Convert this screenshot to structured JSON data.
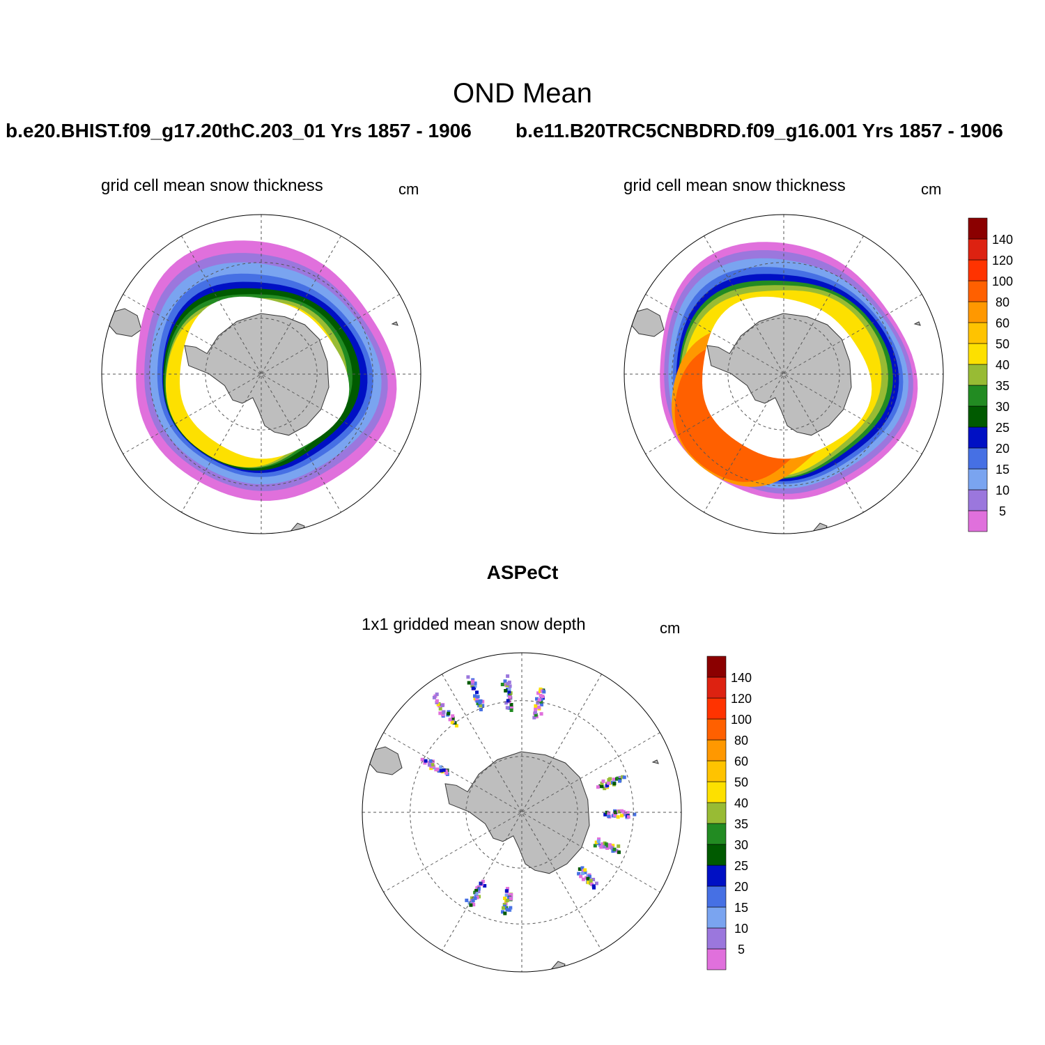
{
  "figure": {
    "title": "OND Mean",
    "left_case": "b.e20.BHIST.f09_g17.20thC.203_01  Yrs 1857 - 1906",
    "right_case": "b.e11.B20TRC5CNBDRD.f09_g16.001  Yrs 1857 - 1906",
    "obs_title": "ASPeCt"
  },
  "panels": [
    {
      "name": "model-left",
      "subtitle": "grid cell mean snow thickness",
      "unit": "cm"
    },
    {
      "name": "model-right",
      "subtitle": "grid cell mean snow thickness",
      "unit": "cm"
    },
    {
      "name": "obs",
      "subtitle": "1x1 gridded mean snow depth",
      "unit": "cm"
    }
  ],
  "colorbar": {
    "labels": [
      "5",
      "10",
      "15",
      "20",
      "25",
      "30",
      "35",
      "40",
      "50",
      "60",
      "80",
      "100",
      "120",
      "140"
    ],
    "colors": [
      "#e070dc",
      "#9b77dd",
      "#7aa4f0",
      "#4670e4",
      "#0010c4",
      "#005a00",
      "#228b22",
      "#98bb34",
      "#fde000",
      "#ffc300",
      "#ff9800",
      "#ff6000",
      "#ff3300",
      "#dd2211",
      "#8b0000"
    ]
  },
  "map_colors": {
    "land": "#bebebe",
    "coast": "#333333",
    "grid": "#555555"
  }
}
